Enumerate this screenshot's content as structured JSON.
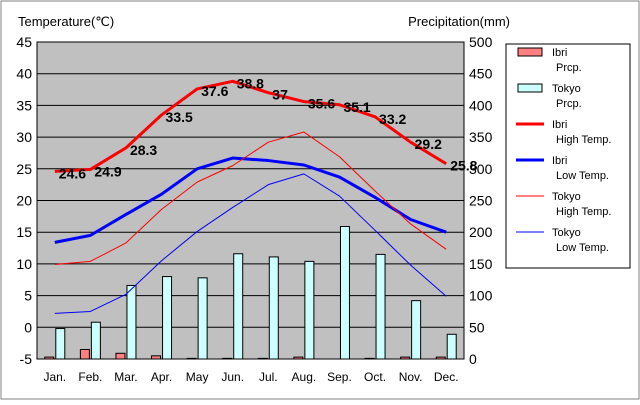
{
  "chart_data": {
    "type": "bar+line",
    "left_axis_label": "Temperature(℃)",
    "right_axis_label": "Precipitation(mm)",
    "categories": [
      "Jan.",
      "Feb.",
      "Mar.",
      "Apr.",
      "May",
      "Jun.",
      "Jul.",
      "Aug.",
      "Sep.",
      "Oct.",
      "Nov.",
      "Dec."
    ],
    "ylim_temperature": [
      -5,
      45
    ],
    "ylim_precipitation": [
      0,
      500
    ],
    "temperature_ticks": [
      -5,
      0,
      5,
      10,
      15,
      20,
      25,
      30,
      35,
      40,
      45
    ],
    "precipitation_ticks": [
      0,
      50,
      100,
      150,
      200,
      250,
      300,
      350,
      400,
      450,
      500
    ],
    "grid": true,
    "legend_position": "right",
    "bar_series": [
      {
        "name": "Ibri\nPrcp.",
        "color": "#ff8080",
        "values": [
          3,
          15,
          9,
          5,
          1,
          1,
          1,
          3,
          0,
          1,
          3,
          3
        ]
      },
      {
        "name": "Tokyo\nPrcp.",
        "color": "#ccffff",
        "values": [
          48,
          58,
          116,
          130,
          128,
          166,
          161,
          154,
          209,
          165,
          92,
          39
        ]
      }
    ],
    "line_series": [
      {
        "name": "Ibri\nHigh Temp.",
        "color": "#ff0000",
        "width": "thick",
        "values": [
          24.6,
          24.9,
          28.3,
          33.5,
          37.6,
          38.8,
          37,
          35.6,
          35.1,
          33.2,
          29.2,
          25.8
        ],
        "data_labels": [
          "24.6",
          "24.9",
          "28.3",
          "33.5",
          "37.6",
          "38.8",
          "37",
          "35.6",
          "35.1",
          "33.2",
          "29.2",
          "25.8"
        ]
      },
      {
        "name": "Ibri\nLow Temp.",
        "color": "#0000ff",
        "width": "thick",
        "values": [
          13.4,
          14.5,
          17.8,
          21,
          25,
          26.7,
          26.3,
          25.6,
          23.7,
          20.5,
          17,
          15
        ]
      },
      {
        "name": "Tokyo\nHigh Temp.",
        "color": "#ff0000",
        "width": "thin",
        "values": [
          9.9,
          10.4,
          13.3,
          18.6,
          22.9,
          25.5,
          29.2,
          30.8,
          26.9,
          21.5,
          16.3,
          12.3
        ]
      },
      {
        "name": "Tokyo\nLow Temp.",
        "color": "#0000ff",
        "width": "thin",
        "values": [
          2.2,
          2.5,
          5.2,
          10.5,
          15.1,
          18.9,
          22.5,
          24.2,
          20.7,
          15.3,
          9.8,
          4.9
        ]
      }
    ]
  }
}
